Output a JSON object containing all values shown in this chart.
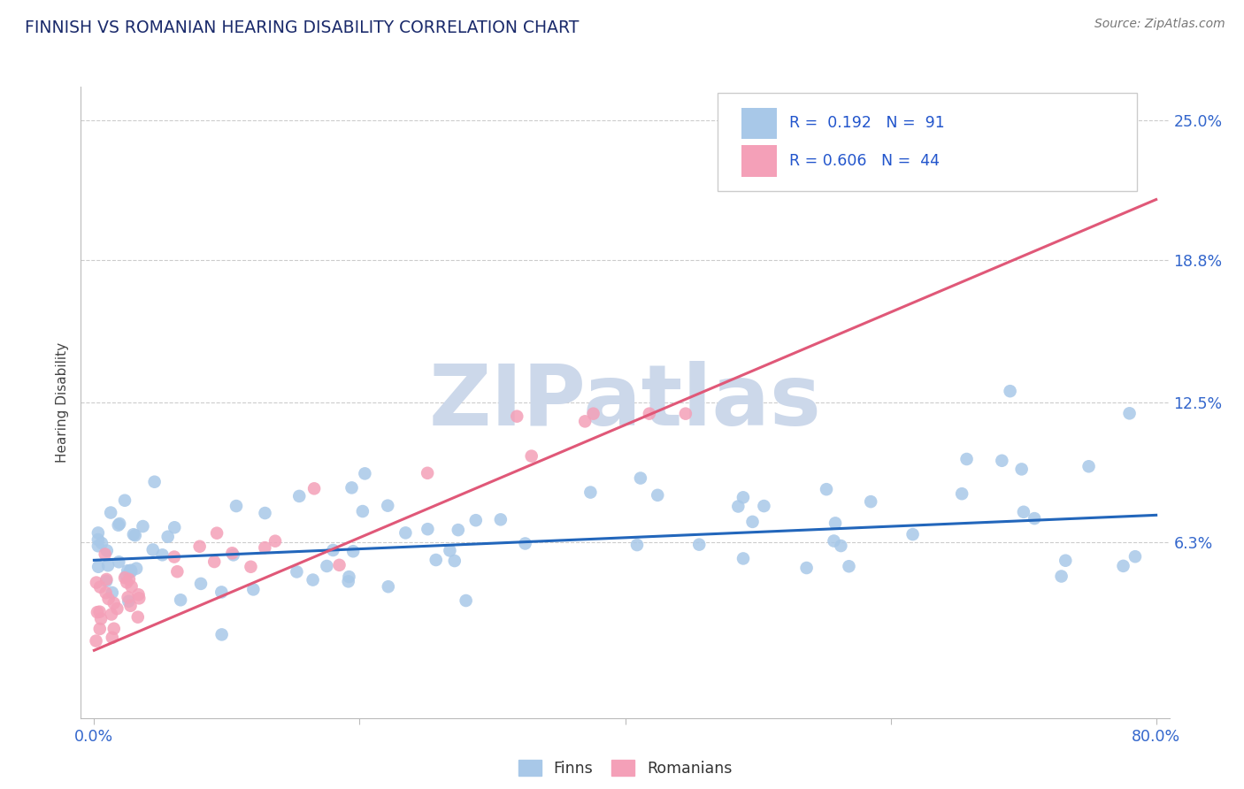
{
  "title": "FINNISH VS ROMANIAN HEARING DISABILITY CORRELATION CHART",
  "source_text": "Source: ZipAtlas.com",
  "ylabel": "Hearing Disability",
  "xlim": [
    0,
    80
  ],
  "ylim": [
    0,
    26.5
  ],
  "x_tick_vals": [
    0,
    80
  ],
  "x_tick_labels": [
    "0.0%",
    "80.0%"
  ],
  "y_tick_vals": [
    6.3,
    12.5,
    18.8,
    25.0
  ],
  "y_tick_labels": [
    "6.3%",
    "12.5%",
    "18.8%",
    "25.0%"
  ],
  "finn_color": "#a8c8e8",
  "rom_color": "#f4a0b8",
  "finn_line_color": "#2266bb",
  "rom_line_color": "#e05878",
  "legend_r_finn": "R =  0.192",
  "legend_n_finn": "N =  91",
  "legend_r_rom": "R = 0.606",
  "legend_n_rom": "N =  44",
  "legend_text_color": "#2255cc",
  "axis_tick_color": "#3366cc",
  "watermark_color": "#ccd8ea",
  "title_color": "#1a2a6b",
  "background_color": "#ffffff",
  "grid_color": "#cccccc",
  "finn_line_x0": 0,
  "finn_line_x1": 80,
  "finn_line_y0": 5.5,
  "finn_line_y1": 7.5,
  "rom_line_x0": 0,
  "rom_line_x1": 80,
  "rom_line_y0": 1.5,
  "rom_line_y1": 21.5
}
